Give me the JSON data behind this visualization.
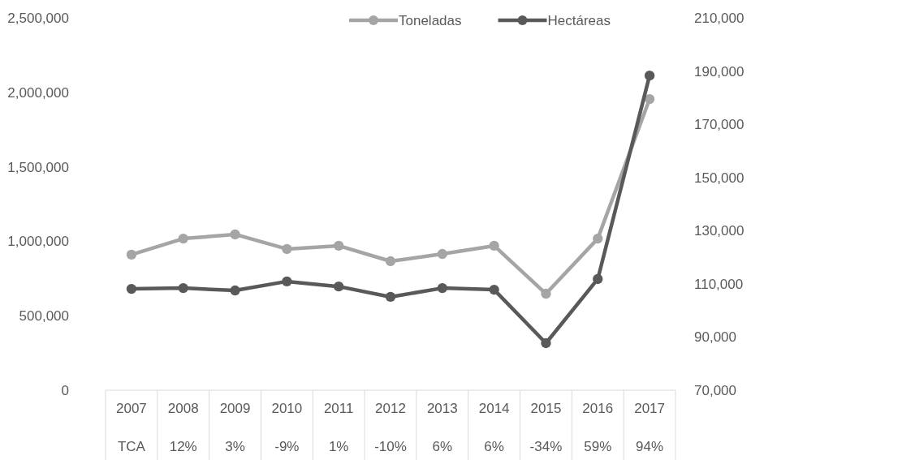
{
  "chart_data": {
    "type": "line",
    "categories": [
      "2007",
      "2008",
      "2009",
      "2010",
      "2011",
      "2012",
      "2013",
      "2014",
      "2015",
      "2016",
      "2017"
    ],
    "series": [
      {
        "name": "Toneladas",
        "color": "#a5a5a5",
        "values": [
          910000,
          1018000,
          1046000,
          948000,
          970000,
          866000,
          915000,
          970000,
          648000,
          1018000,
          1955000
        ]
      },
      {
        "name": "Hectáreas",
        "color": "#595959",
        "axis": "y2",
        "values": [
          108100,
          108400,
          107500,
          110900,
          109000,
          105100,
          108400,
          107800,
          87700,
          111800,
          188300
        ]
      }
    ],
    "ylim": [
      0,
      2500000
    ],
    "yticks": [
      {
        "value": 0,
        "label": "0"
      },
      {
        "value": 500000,
        "label": "500,000"
      },
      {
        "value": 1000000,
        "label": "1,000,000"
      },
      {
        "value": 1500000,
        "label": "1,500,000"
      },
      {
        "value": 2000000,
        "label": "2,000,000"
      },
      {
        "value": 2500000,
        "label": "2,500,000"
      }
    ],
    "y2lim": [
      70000,
      210000
    ],
    "y2ticks": [
      {
        "value": 70000,
        "label": "70,000"
      },
      {
        "value": 90000,
        "label": "90,000"
      },
      {
        "value": 110000,
        "label": "110,000"
      },
      {
        "value": 130000,
        "label": "130,000"
      },
      {
        "value": 150000,
        "label": "150,000"
      },
      {
        "value": 170000,
        "label": "170,000"
      },
      {
        "value": 190000,
        "label": "190,000"
      },
      {
        "value": 210000,
        "label": "210,000"
      }
    ],
    "annotations": [
      "TCA",
      "12%",
      "3%",
      "-9%",
      "1%",
      "-10%",
      "6%",
      "6%",
      "-34%",
      "59%",
      "94%"
    ],
    "grid": false,
    "legend": "top",
    "marker": "circle",
    "line_style": "solid"
  }
}
